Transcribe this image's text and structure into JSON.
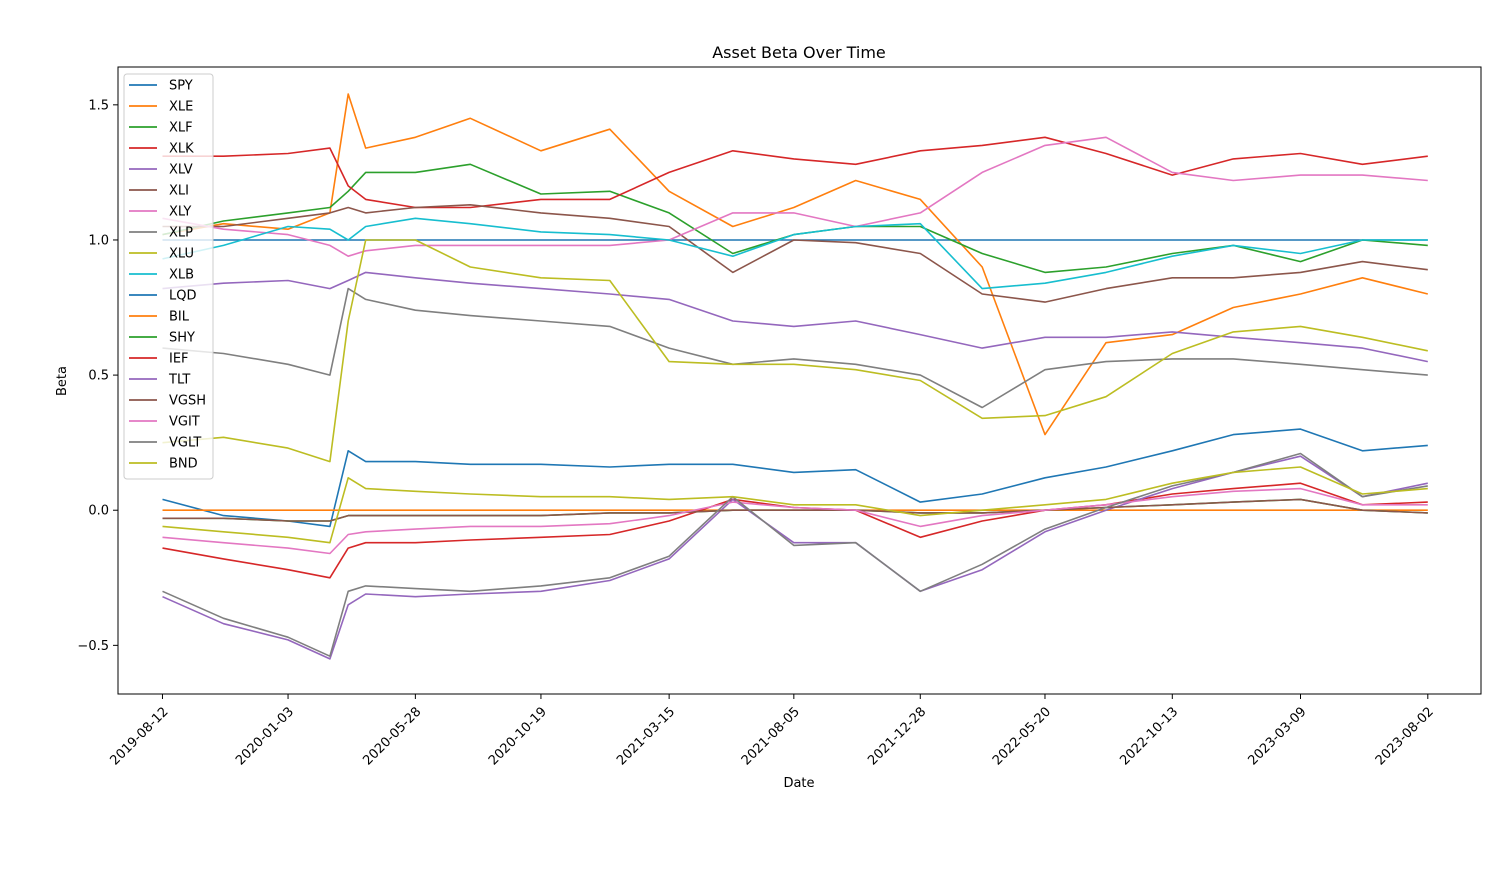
{
  "chart_data": {
    "type": "line",
    "title": "Asset Beta Over Time",
    "xlabel": "Date",
    "ylabel": "Beta",
    "x_ticks": [
      "2019-08-12",
      "2020-01-03",
      "2020-05-28",
      "2020-10-19",
      "2021-03-15",
      "2021-08-05",
      "2021-12-28",
      "2022-05-20",
      "2022-10-13",
      "2023-03-09",
      "2023-08-02"
    ],
    "y_ticks": [
      -0.5,
      0.0,
      0.5,
      1.0,
      1.5
    ],
    "y_tick_labels": [
      "−0.5",
      "0.0",
      "0.5",
      "1.0",
      "1.5"
    ],
    "xlim": [
      "2019-06-22",
      "2023-10-02"
    ],
    "ylim": [
      -0.68,
      1.64
    ],
    "grid": false,
    "legend_position": "upper-left",
    "x": [
      "2019-08-12",
      "2019-10-21",
      "2020-01-03",
      "2020-02-20",
      "2020-03-12",
      "2020-04-01",
      "2020-05-28",
      "2020-07-30",
      "2020-10-19",
      "2021-01-06",
      "2021-03-15",
      "2021-05-27",
      "2021-08-05",
      "2021-10-15",
      "2021-12-28",
      "2022-03-09",
      "2022-05-20",
      "2022-07-29",
      "2022-10-13",
      "2022-12-22",
      "2023-03-09",
      "2023-05-19",
      "2023-08-02"
    ],
    "series": [
      {
        "name": "SPY",
        "color": "#1f77b4",
        "values": [
          1.0,
          1.0,
          1.0,
          1.0,
          1.0,
          1.0,
          1.0,
          1.0,
          1.0,
          1.0,
          1.0,
          1.0,
          1.0,
          1.0,
          1.0,
          1.0,
          1.0,
          1.0,
          1.0,
          1.0,
          1.0,
          1.0,
          1.0
        ]
      },
      {
        "name": "XLE",
        "color": "#ff7f0e",
        "values": [
          1.02,
          1.06,
          1.04,
          1.1,
          1.54,
          1.34,
          1.38,
          1.45,
          1.33,
          1.41,
          1.18,
          1.05,
          1.12,
          1.22,
          1.15,
          0.9,
          0.28,
          0.62,
          0.65,
          0.75,
          0.8,
          0.86,
          0.8
        ]
      },
      {
        "name": "XLF",
        "color": "#2ca02c",
        "values": [
          1.02,
          1.07,
          1.1,
          1.12,
          1.18,
          1.25,
          1.25,
          1.28,
          1.17,
          1.18,
          1.1,
          0.95,
          1.02,
          1.05,
          1.05,
          0.95,
          0.88,
          0.9,
          0.95,
          0.98,
          0.92,
          1.0,
          0.98
        ]
      },
      {
        "name": "XLK",
        "color": "#d62728",
        "values": [
          1.31,
          1.31,
          1.32,
          1.34,
          1.2,
          1.15,
          1.12,
          1.12,
          1.15,
          1.15,
          1.25,
          1.33,
          1.3,
          1.28,
          1.33,
          1.35,
          1.38,
          1.32,
          1.24,
          1.3,
          1.32,
          1.28,
          1.31
        ]
      },
      {
        "name": "XLV",
        "color": "#9467bd",
        "values": [
          0.82,
          0.84,
          0.85,
          0.82,
          0.85,
          0.88,
          0.86,
          0.84,
          0.82,
          0.8,
          0.78,
          0.7,
          0.68,
          0.7,
          0.65,
          0.6,
          0.64,
          0.64,
          0.66,
          0.64,
          0.62,
          0.6,
          0.55
        ]
      },
      {
        "name": "XLI",
        "color": "#8c564b",
        "values": [
          1.05,
          1.05,
          1.08,
          1.1,
          1.12,
          1.1,
          1.12,
          1.13,
          1.1,
          1.08,
          1.05,
          0.88,
          1.0,
          0.99,
          0.95,
          0.8,
          0.77,
          0.82,
          0.86,
          0.86,
          0.88,
          0.92,
          0.89
        ]
      },
      {
        "name": "XLY",
        "color": "#e377c2",
        "values": [
          1.08,
          1.04,
          1.02,
          0.98,
          0.94,
          0.96,
          0.98,
          0.98,
          0.98,
          0.98,
          1.0,
          1.1,
          1.1,
          1.05,
          1.1,
          1.25,
          1.35,
          1.38,
          1.25,
          1.22,
          1.24,
          1.24,
          1.22
        ]
      },
      {
        "name": "XLP",
        "color": "#7f7f7f",
        "values": [
          0.6,
          0.58,
          0.54,
          0.5,
          0.82,
          0.78,
          0.74,
          0.72,
          0.7,
          0.68,
          0.6,
          0.54,
          0.56,
          0.54,
          0.5,
          0.38,
          0.52,
          0.55,
          0.56,
          0.56,
          0.54,
          0.52,
          0.5
        ]
      },
      {
        "name": "XLU",
        "color": "#bcbd22",
        "values": [
          0.25,
          0.27,
          0.23,
          0.18,
          0.7,
          1.0,
          1.0,
          0.9,
          0.86,
          0.85,
          0.55,
          0.54,
          0.54,
          0.52,
          0.48,
          0.34,
          0.35,
          0.42,
          0.58,
          0.66,
          0.68,
          0.64,
          0.59
        ]
      },
      {
        "name": "XLB",
        "color": "#17becf",
        "values": [
          0.93,
          0.98,
          1.05,
          1.04,
          1.0,
          1.05,
          1.08,
          1.06,
          1.03,
          1.02,
          1.0,
          0.94,
          1.02,
          1.05,
          1.06,
          0.82,
          0.84,
          0.88,
          0.94,
          0.98,
          0.95,
          1.0,
          1.0
        ]
      },
      {
        "name": "LQD",
        "color": "#1f77b4",
        "values": [
          0.04,
          -0.02,
          -0.04,
          -0.06,
          0.22,
          0.18,
          0.18,
          0.17,
          0.17,
          0.16,
          0.17,
          0.17,
          0.14,
          0.15,
          0.03,
          0.06,
          0.12,
          0.16,
          0.22,
          0.28,
          0.3,
          0.22,
          0.24
        ]
      },
      {
        "name": "BIL",
        "color": "#ff7f0e",
        "values": [
          0.0,
          0.0,
          0.0,
          0.0,
          0.0,
          0.0,
          0.0,
          0.0,
          0.0,
          0.0,
          0.0,
          0.0,
          0.0,
          0.0,
          0.0,
          0.0,
          0.0,
          0.0,
          0.0,
          0.0,
          0.0,
          0.0,
          0.0
        ]
      },
      {
        "name": "SHY",
        "color": "#2ca02c",
        "values": [
          -0.03,
          -0.03,
          -0.04,
          -0.04,
          -0.02,
          -0.02,
          -0.02,
          -0.02,
          -0.02,
          -0.01,
          -0.01,
          0.0,
          0.0,
          0.0,
          -0.01,
          -0.01,
          0.0,
          0.01,
          0.02,
          0.03,
          0.04,
          0.0,
          -0.01
        ]
      },
      {
        "name": "IEF",
        "color": "#d62728",
        "values": [
          -0.14,
          -0.18,
          -0.22,
          -0.25,
          -0.14,
          -0.12,
          -0.12,
          -0.11,
          -0.1,
          -0.09,
          -0.04,
          0.04,
          0.01,
          0.0,
          -0.1,
          -0.04,
          0.0,
          0.02,
          0.06,
          0.08,
          0.1,
          0.02,
          0.03
        ]
      },
      {
        "name": "TLT",
        "color": "#9467bd",
        "values": [
          -0.32,
          -0.42,
          -0.48,
          -0.55,
          -0.35,
          -0.31,
          -0.32,
          -0.31,
          -0.3,
          -0.26,
          -0.18,
          0.04,
          -0.12,
          -0.12,
          -0.3,
          -0.22,
          -0.08,
          0.0,
          0.08,
          0.14,
          0.2,
          0.05,
          0.1
        ]
      },
      {
        "name": "VGSH",
        "color": "#8c564b",
        "values": [
          -0.03,
          -0.03,
          -0.04,
          -0.04,
          -0.02,
          -0.02,
          -0.02,
          -0.02,
          -0.02,
          -0.01,
          -0.01,
          0.0,
          0.0,
          0.0,
          -0.01,
          -0.01,
          0.0,
          0.01,
          0.02,
          0.03,
          0.04,
          0.0,
          -0.01
        ]
      },
      {
        "name": "VGIT",
        "color": "#e377c2",
        "values": [
          -0.1,
          -0.12,
          -0.14,
          -0.16,
          -0.09,
          -0.08,
          -0.07,
          -0.06,
          -0.06,
          -0.05,
          -0.02,
          0.03,
          0.01,
          0.0,
          -0.06,
          -0.02,
          0.0,
          0.02,
          0.05,
          0.07,
          0.08,
          0.02,
          0.02
        ]
      },
      {
        "name": "VGLT",
        "color": "#7f7f7f",
        "values": [
          -0.3,
          -0.4,
          -0.47,
          -0.54,
          -0.3,
          -0.28,
          -0.29,
          -0.3,
          -0.28,
          -0.25,
          -0.17,
          0.05,
          -0.13,
          -0.12,
          -0.3,
          -0.2,
          -0.07,
          0.01,
          0.09,
          0.14,
          0.21,
          0.05,
          0.09
        ]
      },
      {
        "name": "BND",
        "color": "#bcbd22",
        "values": [
          -0.06,
          -0.08,
          -0.1,
          -0.12,
          0.12,
          0.08,
          0.07,
          0.06,
          0.05,
          0.05,
          0.04,
          0.05,
          0.02,
          0.02,
          -0.02,
          0.0,
          0.02,
          0.04,
          0.1,
          0.14,
          0.16,
          0.06,
          0.08
        ]
      }
    ]
  }
}
